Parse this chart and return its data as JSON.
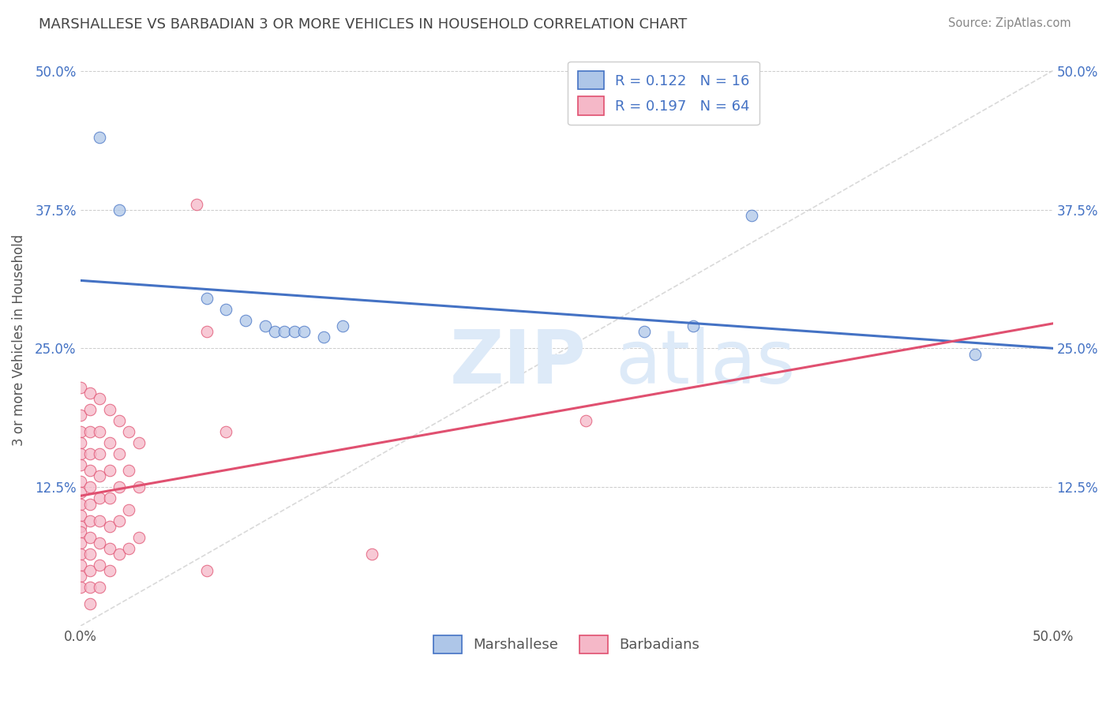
{
  "title": "MARSHALLESE VS BARBADIAN 3 OR MORE VEHICLES IN HOUSEHOLD CORRELATION CHART",
  "source": "Source: ZipAtlas.com",
  "ylabel": "3 or more Vehicles in Household",
  "xlim": [
    0.0,
    0.5
  ],
  "ylim": [
    0.0,
    0.515
  ],
  "x_tick_positions": [
    0.0,
    0.125,
    0.25,
    0.375,
    0.5
  ],
  "x_tick_labels": [
    "0.0%",
    "",
    "",
    "",
    "50.0%"
  ],
  "y_tick_positions": [
    0.0,
    0.125,
    0.25,
    0.375,
    0.5
  ],
  "y_tick_labels": [
    "",
    "12.5%",
    "25.0%",
    "37.5%",
    "50.0%"
  ],
  "marshallese_R": 0.122,
  "marshallese_N": 16,
  "barbadian_R": 0.197,
  "barbadian_N": 64,
  "marshallese_color": "#aec6e8",
  "barbadian_color": "#f5b8c8",
  "marshallese_line_color": "#4472c4",
  "barbadian_line_color": "#e05070",
  "diagonal_color": "#d0d0d0",
  "background_color": "#ffffff",
  "marshallese_points": [
    [
      0.01,
      0.44
    ],
    [
      0.02,
      0.375
    ],
    [
      0.065,
      0.295
    ],
    [
      0.075,
      0.285
    ],
    [
      0.085,
      0.275
    ],
    [
      0.095,
      0.27
    ],
    [
      0.1,
      0.265
    ],
    [
      0.105,
      0.265
    ],
    [
      0.11,
      0.265
    ],
    [
      0.115,
      0.265
    ],
    [
      0.125,
      0.26
    ],
    [
      0.135,
      0.27
    ],
    [
      0.29,
      0.265
    ],
    [
      0.315,
      0.27
    ],
    [
      0.345,
      0.37
    ],
    [
      0.46,
      0.245
    ]
  ],
  "barbadian_points": [
    [
      0.0,
      0.215
    ],
    [
      0.0,
      0.19
    ],
    [
      0.0,
      0.175
    ],
    [
      0.0,
      0.165
    ],
    [
      0.0,
      0.155
    ],
    [
      0.0,
      0.145
    ],
    [
      0.0,
      0.13
    ],
    [
      0.0,
      0.12
    ],
    [
      0.0,
      0.11
    ],
    [
      0.0,
      0.1
    ],
    [
      0.0,
      0.09
    ],
    [
      0.0,
      0.085
    ],
    [
      0.0,
      0.075
    ],
    [
      0.0,
      0.065
    ],
    [
      0.0,
      0.055
    ],
    [
      0.0,
      0.045
    ],
    [
      0.0,
      0.035
    ],
    [
      0.005,
      0.21
    ],
    [
      0.005,
      0.195
    ],
    [
      0.005,
      0.175
    ],
    [
      0.005,
      0.155
    ],
    [
      0.005,
      0.14
    ],
    [
      0.005,
      0.125
    ],
    [
      0.005,
      0.11
    ],
    [
      0.005,
      0.095
    ],
    [
      0.005,
      0.08
    ],
    [
      0.005,
      0.065
    ],
    [
      0.005,
      0.05
    ],
    [
      0.005,
      0.035
    ],
    [
      0.005,
      0.02
    ],
    [
      0.01,
      0.205
    ],
    [
      0.01,
      0.175
    ],
    [
      0.01,
      0.155
    ],
    [
      0.01,
      0.135
    ],
    [
      0.01,
      0.115
    ],
    [
      0.01,
      0.095
    ],
    [
      0.01,
      0.075
    ],
    [
      0.01,
      0.055
    ],
    [
      0.01,
      0.035
    ],
    [
      0.015,
      0.195
    ],
    [
      0.015,
      0.165
    ],
    [
      0.015,
      0.14
    ],
    [
      0.015,
      0.115
    ],
    [
      0.015,
      0.09
    ],
    [
      0.015,
      0.07
    ],
    [
      0.015,
      0.05
    ],
    [
      0.02,
      0.185
    ],
    [
      0.02,
      0.155
    ],
    [
      0.02,
      0.125
    ],
    [
      0.02,
      0.095
    ],
    [
      0.02,
      0.065
    ],
    [
      0.025,
      0.175
    ],
    [
      0.025,
      0.14
    ],
    [
      0.025,
      0.105
    ],
    [
      0.025,
      0.07
    ],
    [
      0.03,
      0.165
    ],
    [
      0.03,
      0.125
    ],
    [
      0.03,
      0.08
    ],
    [
      0.06,
      0.38
    ],
    [
      0.065,
      0.265
    ],
    [
      0.065,
      0.05
    ],
    [
      0.075,
      0.175
    ],
    [
      0.15,
      0.065
    ],
    [
      0.26,
      0.185
    ]
  ]
}
